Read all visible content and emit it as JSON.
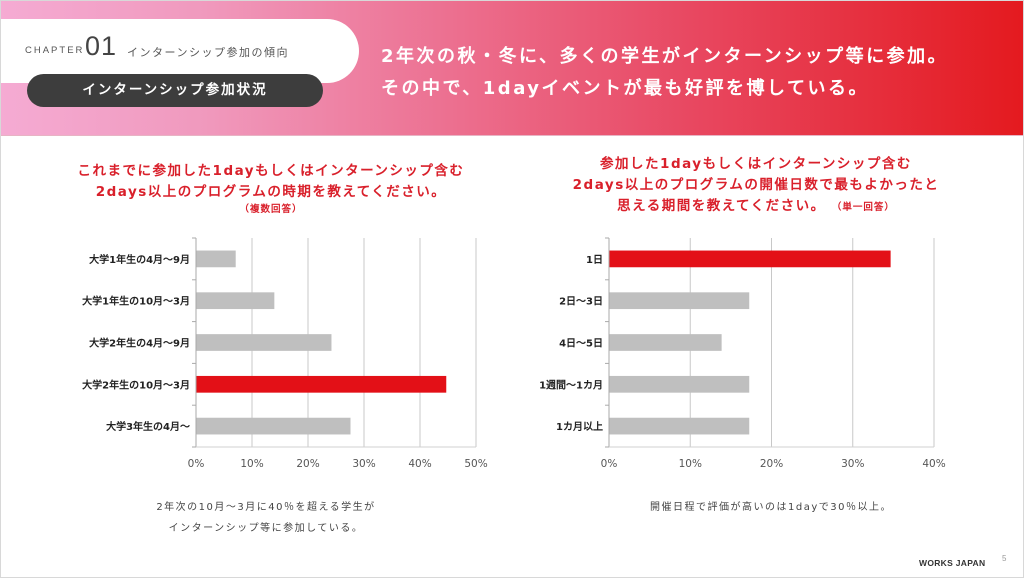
{
  "header": {
    "chapter_label": "CHAPTER",
    "chapter_number": "01",
    "chapter_title": "インターンシップ参加の傾向",
    "section_title": "インターンシップ参加状況",
    "headline_line1": "2年次の秋・冬に、多くの学生がインターンシップ等に参加。",
    "headline_line2": "その中で、1dayイベントが最も好評を博している。"
  },
  "colors": {
    "highlight": "#e31017",
    "bar_default": "#bfbfbf",
    "title_red": "#d9202b",
    "grid": "#c8c8c8",
    "section_pill": "#3d3d3d"
  },
  "left_question": {
    "line1": "これまでに参加した1dayもしくはインターンシップ含む",
    "line2": "2days以上のプログラムの時期を教えてください。",
    "note": "（複数回答）"
  },
  "right_question": {
    "line1": "参加した1dayもしくはインターンシップ含む",
    "line2": "2days以上のプログラムの開催日数で最もよかったと",
    "line3": "思える期間を教えてください。",
    "note": "（単一回答）"
  },
  "chart_data": [
    {
      "type": "bar",
      "orientation": "horizontal",
      "title": "これまでに参加した1dayもしくはインターンシップ含む2days以上のプログラムの時期を教えてください。（複数回答）",
      "categories": [
        "大学1年生の4月～9月",
        "大学1年生の10月～3月",
        "大学2年生の4月～9月",
        "大学2年生の10月～3月",
        "大学3年生の4月～"
      ],
      "values": [
        7.0,
        13.9,
        24.1,
        44.6,
        27.5
      ],
      "highlight_index": 3,
      "xlabel": "",
      "ylabel": "",
      "xlim": [
        0,
        50
      ],
      "x_ticks": [
        "0%",
        "10%",
        "20%",
        "30%",
        "40%",
        "50%"
      ],
      "unit": "%",
      "grid": true
    },
    {
      "type": "bar",
      "orientation": "horizontal",
      "title": "参加した1dayもしくはインターンシップ含む2days以上のプログラムの開催日数で最もよかったと思える期間を教えてください。（単一回答）",
      "categories": [
        "1日",
        "2日～3日",
        "4日～5日",
        "1週間～1カ月",
        "1カ月以上"
      ],
      "values": [
        34.6,
        17.2,
        13.8,
        17.2,
        17.2
      ],
      "highlight_index": 0,
      "xlabel": "",
      "ylabel": "",
      "xlim": [
        0,
        40
      ],
      "x_ticks": [
        "0%",
        "10%",
        "20%",
        "30%",
        "40%"
      ],
      "unit": "%",
      "grid": true
    }
  ],
  "captions": {
    "left_line1": "2年次の10月～3月に40％を超える学生が",
    "left_line2": "インターンシップ等に参加している。",
    "right": "開催日程で評価が高いのは1dayで30％以上。"
  },
  "footer": {
    "logo": "WORKS JAPAN",
    "page_number": "5"
  }
}
